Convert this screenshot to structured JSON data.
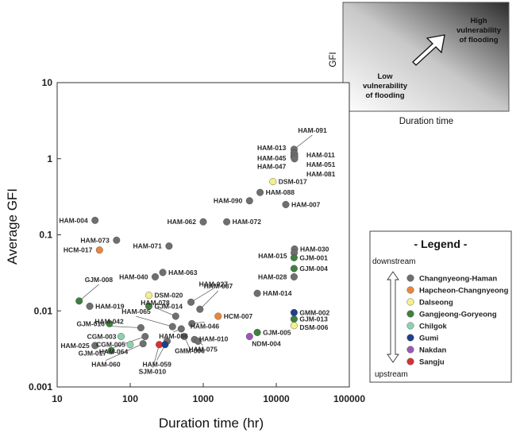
{
  "chart_data": {
    "type": "scatter",
    "xlabel": "Duration time (hr)",
    "ylabel": "Average GFI",
    "xscale": "log",
    "yscale": "log",
    "xlim": [
      10,
      100000
    ],
    "ylim": [
      0.001,
      10
    ],
    "x_ticks": [
      "10",
      "100",
      "1000",
      "10000",
      "100000"
    ],
    "y_ticks": [
      "10",
      "1",
      "0.1",
      "0.01",
      "0.001"
    ],
    "groups": [
      {
        "name": "Changnyeong-Haman",
        "color": "#6f6f6f"
      },
      {
        "name": "Hapcheon-Changnyeong",
        "color": "#e8873c"
      },
      {
        "name": "Dalseong",
        "color": "#f4f08a"
      },
      {
        "name": "Gangjeong-Goryeong",
        "color": "#3f7f3f"
      },
      {
        "name": "Chilgok",
        "color": "#8fd0b0"
      },
      {
        "name": "Gumi",
        "color": "#1f3f8f"
      },
      {
        "name": "Nakdan",
        "color": "#9b59b6"
      },
      {
        "name": "Sangju",
        "color": "#d93030"
      }
    ],
    "points": [
      {
        "label": "HAM-091",
        "x": 17500,
        "y": 1.33,
        "group": 0
      },
      {
        "label": "HAM-013",
        "x": 17500,
        "y": 1.2,
        "group": 0
      },
      {
        "label": "HAM-045",
        "x": 17500,
        "y": 1.1,
        "group": 0
      },
      {
        "label": "HAM-047",
        "x": 17500,
        "y": 1.05,
        "group": 0
      },
      {
        "label": "HAM-011",
        "x": 17800,
        "y": 1.15,
        "group": 0
      },
      {
        "label": "HAM-051",
        "x": 17800,
        "y": 1.07,
        "group": 0
      },
      {
        "label": "HAM-081",
        "x": 17800,
        "y": 1.0,
        "group": 0
      },
      {
        "label": "DSM-017",
        "x": 9000,
        "y": 0.5,
        "group": 2
      },
      {
        "label": "HAM-088",
        "x": 6000,
        "y": 0.36,
        "group": 0
      },
      {
        "label": "HAM-090",
        "x": 4300,
        "y": 0.28,
        "group": 0
      },
      {
        "label": "HAM-007",
        "x": 13500,
        "y": 0.25,
        "group": 0
      },
      {
        "label": "HAM-004",
        "x": 33,
        "y": 0.155,
        "group": 0
      },
      {
        "label": "HAM-062",
        "x": 1000,
        "y": 0.148,
        "group": 0
      },
      {
        "label": "HAM-072",
        "x": 2100,
        "y": 0.148,
        "group": 0
      },
      {
        "label": "HAM-073",
        "x": 65,
        "y": 0.085,
        "group": 0
      },
      {
        "label": "HCM-017",
        "x": 38,
        "y": 0.063,
        "group": 1
      },
      {
        "label": "HAM-071",
        "x": 340,
        "y": 0.071,
        "group": 0
      },
      {
        "label": "HAM-030",
        "x": 17800,
        "y": 0.065,
        "group": 0
      },
      {
        "label": "HAM-015",
        "x": 17600,
        "y": 0.058,
        "group": 0
      },
      {
        "label": "GJM-001",
        "x": 17500,
        "y": 0.05,
        "group": 3
      },
      {
        "label": "GJM-004",
        "x": 17500,
        "y": 0.036,
        "group": 3
      },
      {
        "label": "HAM-063",
        "x": 280,
        "y": 0.032,
        "group": 0
      },
      {
        "label": "HAM-040",
        "x": 220,
        "y": 0.028,
        "group": 0
      },
      {
        "label": "HAM-028",
        "x": 17500,
        "y": 0.028,
        "group": 0
      },
      {
        "label": "DSM-020",
        "x": 180,
        "y": 0.016,
        "group": 2
      },
      {
        "label": "HAM-027",
        "x": 680,
        "y": 0.013,
        "group": 0
      },
      {
        "label": "HAM-014",
        "x": 5500,
        "y": 0.017,
        "group": 0
      },
      {
        "label": "GJM-008",
        "x": 20,
        "y": 0.0135,
        "group": 3
      },
      {
        "label": "HAM-019",
        "x": 28,
        "y": 0.0115,
        "group": 0
      },
      {
        "label": "GJM-014",
        "x": 180,
        "y": 0.0115,
        "group": 3
      },
      {
        "label": "HAM-087",
        "x": 900,
        "y": 0.0105,
        "group": 0
      },
      {
        "label": "HAM-078",
        "x": 420,
        "y": 0.0085,
        "group": 0
      },
      {
        "label": "HCM-007",
        "x": 1600,
        "y": 0.0085,
        "group": 1
      },
      {
        "label": "GMM-002",
        "x": 17500,
        "y": 0.0095,
        "group": 5
      },
      {
        "label": "GJM-013",
        "x": 17500,
        "y": 0.0078,
        "group": 3
      },
      {
        "label": "DSM-006",
        "x": 17500,
        "y": 0.0064,
        "group": 2
      },
      {
        "label": "HAM-046",
        "x": 700,
        "y": 0.0068,
        "group": 0
      },
      {
        "label": "GJM-016",
        "x": 52,
        "y": 0.0068,
        "group": 3
      },
      {
        "label": "HAM-065",
        "x": 380,
        "y": 0.0062,
        "group": 0
      },
      {
        "label": "HAM-042",
        "x": 140,
        "y": 0.006,
        "group": 0
      },
      {
        "label": "GJM-005",
        "x": 5500,
        "y": 0.0052,
        "group": 3
      },
      {
        "label": "HAM-086",
        "x": 500,
        "y": 0.0058,
        "group": 0
      },
      {
        "label": "CGM-003",
        "x": 75,
        "y": 0.0046,
        "group": 4
      },
      {
        "label": "NDM-004",
        "x": 4300,
        "y": 0.0046,
        "group": 6
      },
      {
        "label": "GMM-006",
        "x": 550,
        "y": 0.0046,
        "group": 0
      },
      {
        "label": "HAM-010",
        "x": 760,
        "y": 0.0042,
        "group": 0
      },
      {
        "label": "CGM-005",
        "x": 100,
        "y": 0.0036,
        "group": 4
      },
      {
        "label": "HAM-025",
        "x": 33,
        "y": 0.0035,
        "group": 0
      },
      {
        "label": "HAM-075",
        "x": 850,
        "y": 0.004,
        "group": 0
      },
      {
        "label": "HAM-064",
        "x": 160,
        "y": 0.0046,
        "group": 0
      },
      {
        "label": "HAM-059",
        "x": 320,
        "y": 0.004,
        "group": 0
      },
      {
        "label": "GJM-017",
        "x": 55,
        "y": 0.003,
        "group": 3
      },
      {
        "label": "HAM-060",
        "x": 150,
        "y": 0.0037,
        "group": 0
      },
      {
        "label": "SJM-010",
        "x": 250,
        "y": 0.0036,
        "group": 7
      },
      {
        "label": "GMM-059b",
        "x": 300,
        "y": 0.0036,
        "group": 5
      }
    ],
    "inset": {
      "ylabel": "GFI",
      "xlabel": "Duration time",
      "low_label": "Low\nvulnerability\nof flooding",
      "high_label": "High\nvulnerability\nof flooding"
    },
    "legend": {
      "title": "- Legend -",
      "top": "downstream",
      "bottom": "upstream"
    }
  }
}
